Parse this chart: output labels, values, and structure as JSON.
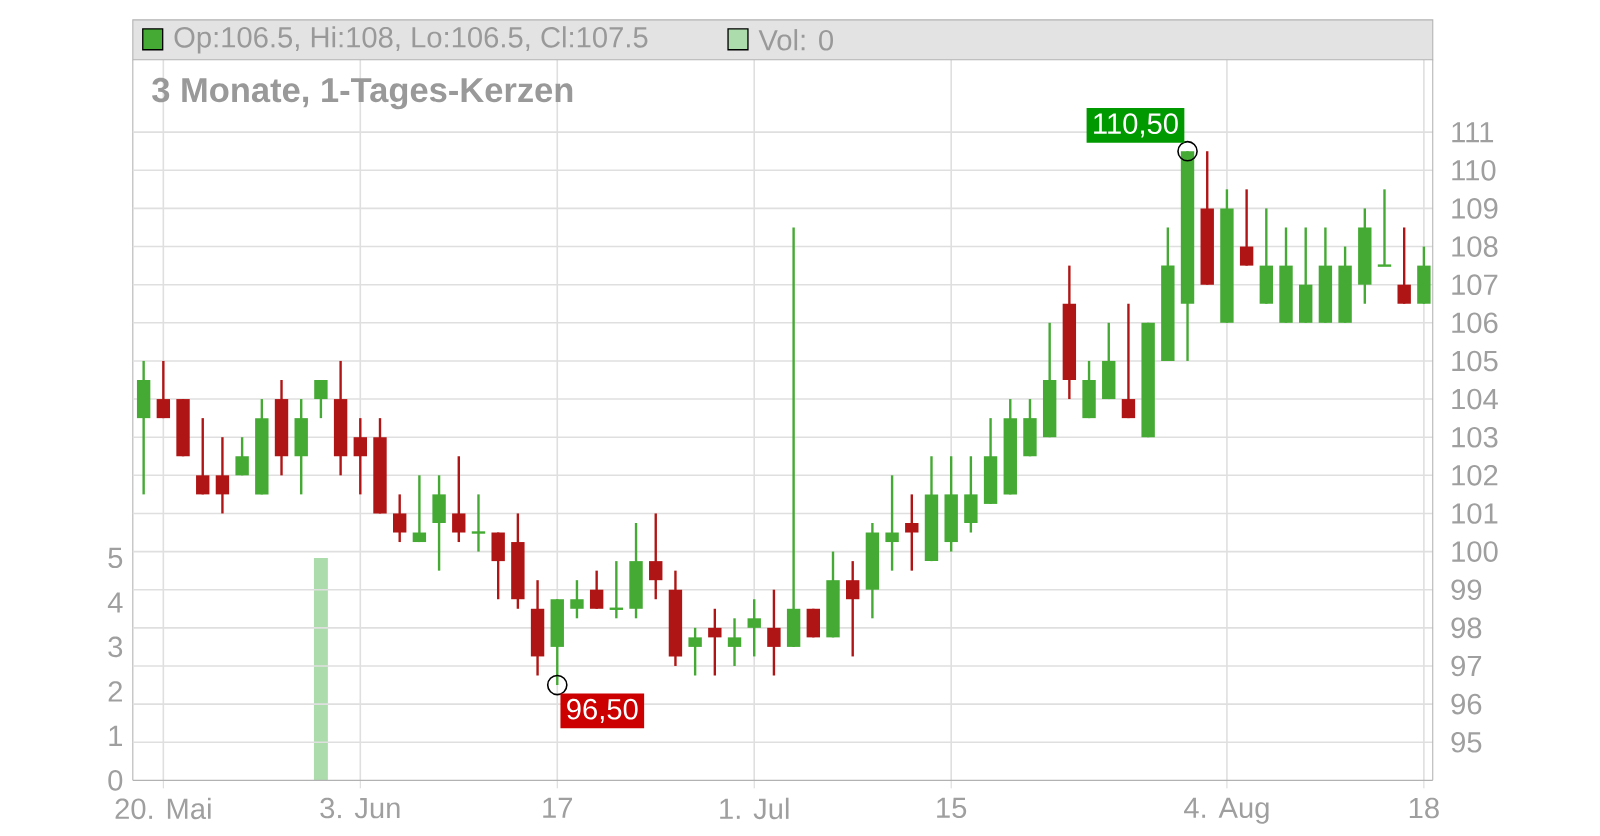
{
  "chart_data": {
    "type": "candlestick",
    "title": "3 Monate, 1-Tages-Kerzen",
    "categories": [
      null,
      "20. Mai",
      null,
      null,
      null,
      null,
      null,
      null,
      null,
      null,
      null,
      "3. Jun",
      null,
      null,
      null,
      null,
      null,
      null,
      null,
      null,
      null,
      "17",
      null,
      null,
      null,
      null,
      null,
      null,
      null,
      null,
      null,
      "1. Jul",
      null,
      null,
      null,
      null,
      null,
      null,
      null,
      null,
      null,
      "15",
      null,
      null,
      null,
      null,
      null,
      null,
      null,
      null,
      null,
      null,
      null,
      null,
      null,
      "4. Aug",
      null,
      null,
      null,
      null,
      null,
      null,
      null,
      null,
      null,
      "18"
    ],
    "ohlc": [
      [
        103.5,
        105,
        101.5,
        104.5
      ],
      [
        104,
        105,
        103.5,
        103.5
      ],
      [
        104,
        104,
        102.5,
        102.5
      ],
      [
        102,
        103.5,
        101.5,
        101.5
      ],
      [
        102,
        103,
        101,
        101.5
      ],
      [
        102,
        103,
        102,
        102.5
      ],
      [
        101.5,
        104,
        101.5,
        103.5
      ],
      [
        104,
        104.5,
        102,
        102.5
      ],
      [
        102.5,
        104,
        101.5,
        103.5
      ],
      [
        104,
        104.5,
        103.5,
        104.5
      ],
      [
        104,
        105,
        102,
        102.5
      ],
      [
        103,
        103.5,
        101.5,
        102.5
      ],
      [
        103,
        103.5,
        101,
        101
      ],
      [
        101,
        101.5,
        100.25,
        100.5
      ],
      [
        100.25,
        102,
        100.25,
        100.5
      ],
      [
        100.75,
        102,
        99.5,
        101.5
      ],
      [
        101,
        102.5,
        100.25,
        100.5
      ],
      [
        100.5,
        101.5,
        100,
        100.5
      ],
      [
        100.5,
        100.5,
        98.75,
        99.75
      ],
      [
        100.25,
        101,
        98.5,
        98.75
      ],
      [
        98.5,
        99.25,
        96.75,
        97.25
      ],
      [
        97.5,
        98.75,
        96.5,
        98.75
      ],
      [
        98.5,
        99.25,
        98.25,
        98.75
      ],
      [
        99,
        99.5,
        98.5,
        98.5
      ],
      [
        98.5,
        99.75,
        98.25,
        98.5
      ],
      [
        98.5,
        100.75,
        98.25,
        99.75
      ],
      [
        99.75,
        101,
        98.75,
        99.25
      ],
      [
        99,
        99.5,
        97,
        97.25
      ],
      [
        97.5,
        98,
        96.75,
        97.75
      ],
      [
        98,
        98.5,
        96.75,
        97.75
      ],
      [
        97.5,
        98.25,
        97,
        97.75
      ],
      [
        98,
        98.75,
        97.25,
        98.25
      ],
      [
        98,
        99,
        96.75,
        97.5
      ],
      [
        97.5,
        108.5,
        97.5,
        98.5
      ],
      [
        98.5,
        98.5,
        97.75,
        97.75
      ],
      [
        97.75,
        100,
        97.75,
        99.25
      ],
      [
        99.25,
        99.75,
        97.25,
        98.75
      ],
      [
        99,
        100.75,
        98.25,
        100.5
      ],
      [
        100.25,
        102,
        99.5,
        100.5
      ],
      [
        100.75,
        101.5,
        99.5,
        100.5
      ],
      [
        99.75,
        102.5,
        99.75,
        101.5
      ],
      [
        100.25,
        102.5,
        100,
        101.5
      ],
      [
        100.75,
        102.5,
        100.5,
        101.5
      ],
      [
        101.25,
        103.5,
        101.25,
        102.5
      ],
      [
        101.5,
        104,
        101.5,
        103.5
      ],
      [
        102.5,
        104,
        102.5,
        103.5
      ],
      [
        103,
        106,
        103,
        104.5
      ],
      [
        106.5,
        107.5,
        104,
        104.5
      ],
      [
        103.5,
        105,
        103.5,
        104.5
      ],
      [
        104,
        106,
        104,
        105
      ],
      [
        104,
        106.5,
        103.5,
        103.5
      ],
      [
        103,
        106,
        103,
        106
      ],
      [
        105,
        108.5,
        105,
        107.5
      ],
      [
        106.5,
        110.5,
        105,
        110.5
      ],
      [
        109,
        110.5,
        107,
        107
      ],
      [
        106,
        109.5,
        106,
        109
      ],
      [
        108,
        109.5,
        107.5,
        107.5
      ],
      [
        106.5,
        109,
        106.5,
        107.5
      ],
      [
        106,
        108.5,
        106,
        107.5
      ],
      [
        106,
        108.5,
        106,
        107
      ],
      [
        106,
        108.5,
        106,
        107.5
      ],
      [
        106,
        108,
        106,
        107.5
      ],
      [
        107,
        109,
        106.5,
        108.5
      ],
      [
        107.5,
        109.5,
        107.5,
        107.5
      ],
      [
        107,
        108.5,
        106.5,
        106.5
      ],
      [
        106.5,
        108,
        106.5,
        107.5
      ]
    ],
    "series": [
      {
        "type": "bar",
        "axis": "y2",
        "color": "#acdcac",
        "values": [
          0,
          0,
          0,
          0,
          0,
          0,
          0,
          0,
          0,
          5,
          0,
          0,
          0,
          0,
          0,
          0,
          0,
          0,
          0,
          0,
          0,
          0,
          0,
          0,
          0,
          0,
          0,
          0,
          0,
          0,
          0,
          0,
          0,
          0,
          0,
          0,
          0,
          0,
          0,
          0,
          0,
          0,
          0,
          0,
          0,
          0,
          0,
          0,
          0,
          0,
          0,
          0,
          0,
          0,
          0,
          0,
          0,
          0,
          0,
          0,
          0,
          0,
          0,
          0,
          0,
          0
        ]
      }
    ],
    "ylim": [
      94,
      112.9
    ],
    "yticks": [
      95,
      96,
      97,
      98,
      99,
      100,
      101,
      102,
      103,
      104,
      105,
      106,
      107,
      108,
      109,
      110,
      111
    ],
    "y2lim": [
      0,
      16.2
    ],
    "y2ticks": [
      0,
      1,
      2,
      3,
      4,
      5
    ],
    "grid": true,
    "annotations": [
      "Op:106.5, Hi:108, Lo:106.5, Cl:107.5",
      "Vol: 0",
      "110,50",
      "96,50"
    ]
  }
}
